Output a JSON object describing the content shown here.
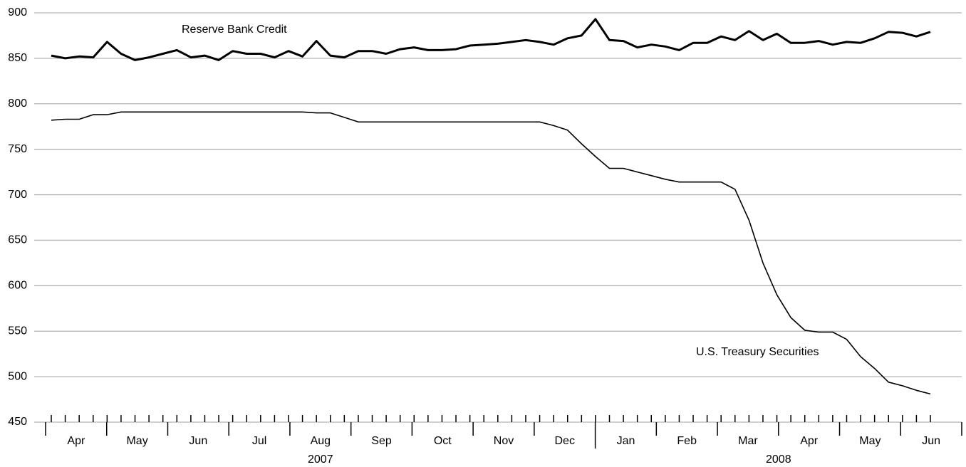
{
  "chart_data": {
    "type": "line",
    "x_axis": {
      "groups": [
        {
          "year": "2007",
          "months": [
            "Apr",
            "May",
            "Jun",
            "Jul",
            "Aug",
            "Sep",
            "Oct",
            "Nov",
            "Dec"
          ]
        },
        {
          "year": "2008",
          "months": [
            "Jan",
            "Feb",
            "Mar",
            "Apr",
            "May",
            "Jun"
          ]
        }
      ]
    },
    "ylim": [
      450,
      900
    ],
    "yticks": [
      450,
      500,
      550,
      600,
      650,
      700,
      750,
      800,
      850,
      900
    ],
    "grid": true,
    "series": [
      {
        "name": "Reserve Bank Credit",
        "color": "#000000",
        "line_width": 3,
        "values": [
          853,
          850,
          852,
          851,
          868,
          855,
          848,
          851,
          855,
          859,
          851,
          853,
          848,
          858,
          855,
          855,
          851,
          858,
          852,
          869,
          853,
          851,
          858,
          858,
          855,
          860,
          862,
          859,
          859,
          860,
          864,
          865,
          866,
          868,
          870,
          868,
          865,
          872,
          875,
          893,
          870,
          869,
          862,
          865,
          863,
          859,
          867,
          867,
          874,
          870,
          880,
          870,
          877,
          867,
          867,
          869,
          865,
          868,
          867,
          872,
          879,
          878,
          874,
          879
        ]
      },
      {
        "name": "U.S. Treasury Securities",
        "color": "#000000",
        "line_width": 1.6,
        "values": [
          782,
          783,
          783,
          788,
          788,
          791,
          791,
          791,
          791,
          791,
          791,
          791,
          791,
          791,
          791,
          791,
          791,
          791,
          791,
          790,
          790,
          785,
          780,
          780,
          780,
          780,
          780,
          780,
          780,
          780,
          780,
          780,
          780,
          780,
          780,
          780,
          776,
          771,
          756,
          742,
          729,
          729,
          725,
          721,
          717,
          714,
          714,
          714,
          714,
          706,
          672,
          625,
          590,
          565,
          551,
          549,
          549,
          541,
          522,
          509,
          494,
          490,
          485,
          481
        ]
      }
    ]
  }
}
